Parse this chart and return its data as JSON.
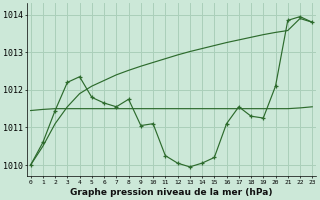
{
  "bg_color": "#cce8d8",
  "grid_color": "#aacfba",
  "line_color": "#2d6b2d",
  "x_ticks": [
    0,
    1,
    2,
    3,
    4,
    5,
    6,
    7,
    8,
    9,
    10,
    11,
    12,
    13,
    14,
    15,
    16,
    17,
    18,
    19,
    20,
    21,
    22,
    23
  ],
  "ylim": [
    1009.7,
    1014.3
  ],
  "yticks": [
    1010,
    1011,
    1012,
    1013,
    1014
  ],
  "xlabel": "Graphe pression niveau de la mer (hPa)",
  "series_jagged": [
    1010.0,
    1010.6,
    1011.45,
    1012.2,
    1012.35,
    1011.8,
    1011.65,
    1011.55,
    1011.75,
    1011.05,
    1011.1,
    1010.25,
    1010.05,
    1009.95,
    1010.05,
    1010.2,
    1011.1,
    1011.55,
    1011.3,
    1011.25,
    1012.1,
    1013.85,
    1013.95,
    1013.8
  ],
  "series_flat": [
    1011.45,
    1011.48,
    1011.5,
    1011.5,
    1011.5,
    1011.5,
    1011.5,
    1011.5,
    1011.5,
    1011.5,
    1011.5,
    1011.5,
    1011.5,
    1011.5,
    1011.5,
    1011.5,
    1011.5,
    1011.5,
    1011.5,
    1011.5,
    1011.5,
    1011.5,
    1011.52,
    1011.55
  ],
  "series_rising": [
    1010.0,
    1010.5,
    1011.1,
    1011.55,
    1011.9,
    1012.1,
    1012.25,
    1012.4,
    1012.52,
    1012.63,
    1012.73,
    1012.83,
    1012.93,
    1013.02,
    1013.1,
    1013.18,
    1013.26,
    1013.33,
    1013.4,
    1013.47,
    1013.53,
    1013.58,
    1013.9,
    1013.8
  ]
}
